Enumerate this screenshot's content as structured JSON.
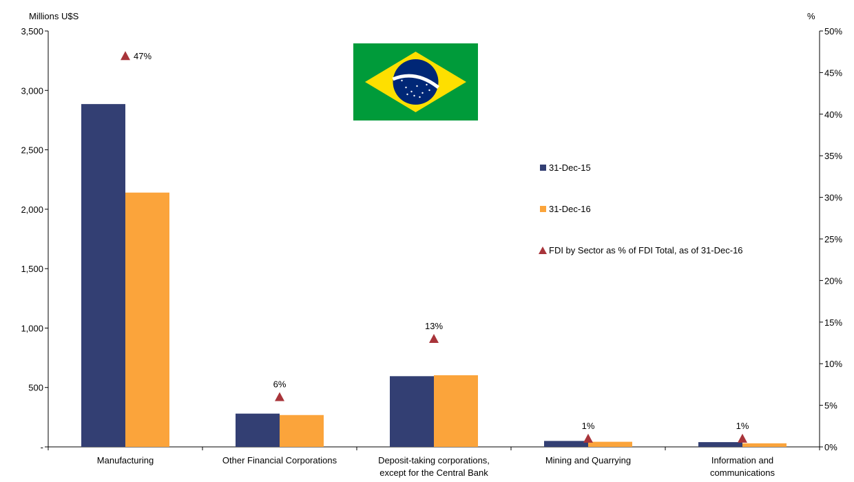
{
  "chart_data": {
    "type": "bar",
    "left_axis_label": "Millions U$S",
    "right_axis_label": "%",
    "categories": [
      [
        "Manufacturing"
      ],
      [
        "Other Financial Corporations"
      ],
      [
        "Deposit-taking corporations,",
        "except for the Central Bank"
      ],
      [
        "Mining and Quarrying"
      ],
      [
        "Information and",
        "communications"
      ]
    ],
    "series": [
      {
        "name": "31-Dec-15",
        "color": "#333F73",
        "values": [
          2885,
          280,
          595,
          50,
          40
        ]
      },
      {
        "name": "31-Dec-16",
        "color": "#FBA43B",
        "values": [
          2140,
          268,
          603,
          43,
          30
        ]
      }
    ],
    "pct_series": {
      "name": "FDI by Sector as % of FDI Total, as of 31-Dec-16",
      "color": "#A8343A",
      "values": [
        47,
        6,
        13,
        1,
        1
      ],
      "labels": [
        "47%",
        "6%",
        "13%",
        "1%",
        "1%"
      ]
    },
    "ylim_left": [
      0,
      3500
    ],
    "ylim_right": [
      0,
      50
    ],
    "left_ticks": [
      {
        "v": 0,
        "label": "-"
      },
      {
        "v": 500,
        "label": "500"
      },
      {
        "v": 1000,
        "label": "1,000"
      },
      {
        "v": 1500,
        "label": "1,500"
      },
      {
        "v": 2000,
        "label": "2,000"
      },
      {
        "v": 2500,
        "label": "2,500"
      },
      {
        "v": 3000,
        "label": "3,000"
      },
      {
        "v": 3500,
        "label": "3,500"
      }
    ],
    "right_ticks": [
      {
        "v": 0,
        "label": "0%"
      },
      {
        "v": 5,
        "label": "5%"
      },
      {
        "v": 10,
        "label": "10%"
      },
      {
        "v": 15,
        "label": "15%"
      },
      {
        "v": 20,
        "label": "20%"
      },
      {
        "v": 25,
        "label": "25%"
      },
      {
        "v": 30,
        "label": "30%"
      },
      {
        "v": 35,
        "label": "35%"
      },
      {
        "v": 40,
        "label": "40%"
      },
      {
        "v": 45,
        "label": "45%"
      },
      {
        "v": 50,
        "label": "50%"
      }
    ],
    "grid": false,
    "legend_position": "right-center",
    "flag": {
      "name": "brazil-flag",
      "green": "#009B3A",
      "yellow": "#FEDF00",
      "blue": "#002776"
    }
  }
}
